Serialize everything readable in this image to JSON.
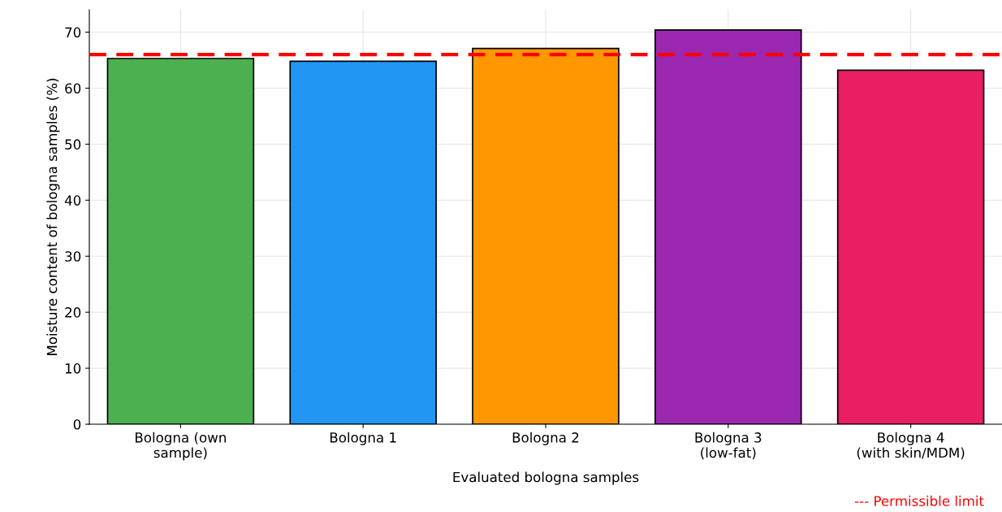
{
  "chart_data": {
    "type": "bar",
    "xlabel": "Evaluated bologna samples",
    "ylabel": "Moisture content of bologna samples (%)",
    "categories": [
      "Bologna (own\nsample)",
      "Bologna 1",
      "Bologna 2",
      "Bologna 3\n(low-fat)",
      "Bologna 4\n(with skin/MDM)"
    ],
    "values": [
      65.3,
      64.8,
      67.1,
      70.4,
      63.2
    ],
    "colors": [
      "#4caf50",
      "#2196f3",
      "#ff9800",
      "#9c27b0",
      "#e91e63"
    ],
    "ylim": [
      0,
      74
    ],
    "yticks": [
      0,
      10,
      20,
      30,
      40,
      50,
      60,
      70
    ],
    "grid": true,
    "ref_lines": [
      {
        "axis": "y",
        "value": 66,
        "color": "#ff0000",
        "line_style": "dashed"
      }
    ],
    "annotations": [
      "--- Permissible limit"
    ]
  }
}
